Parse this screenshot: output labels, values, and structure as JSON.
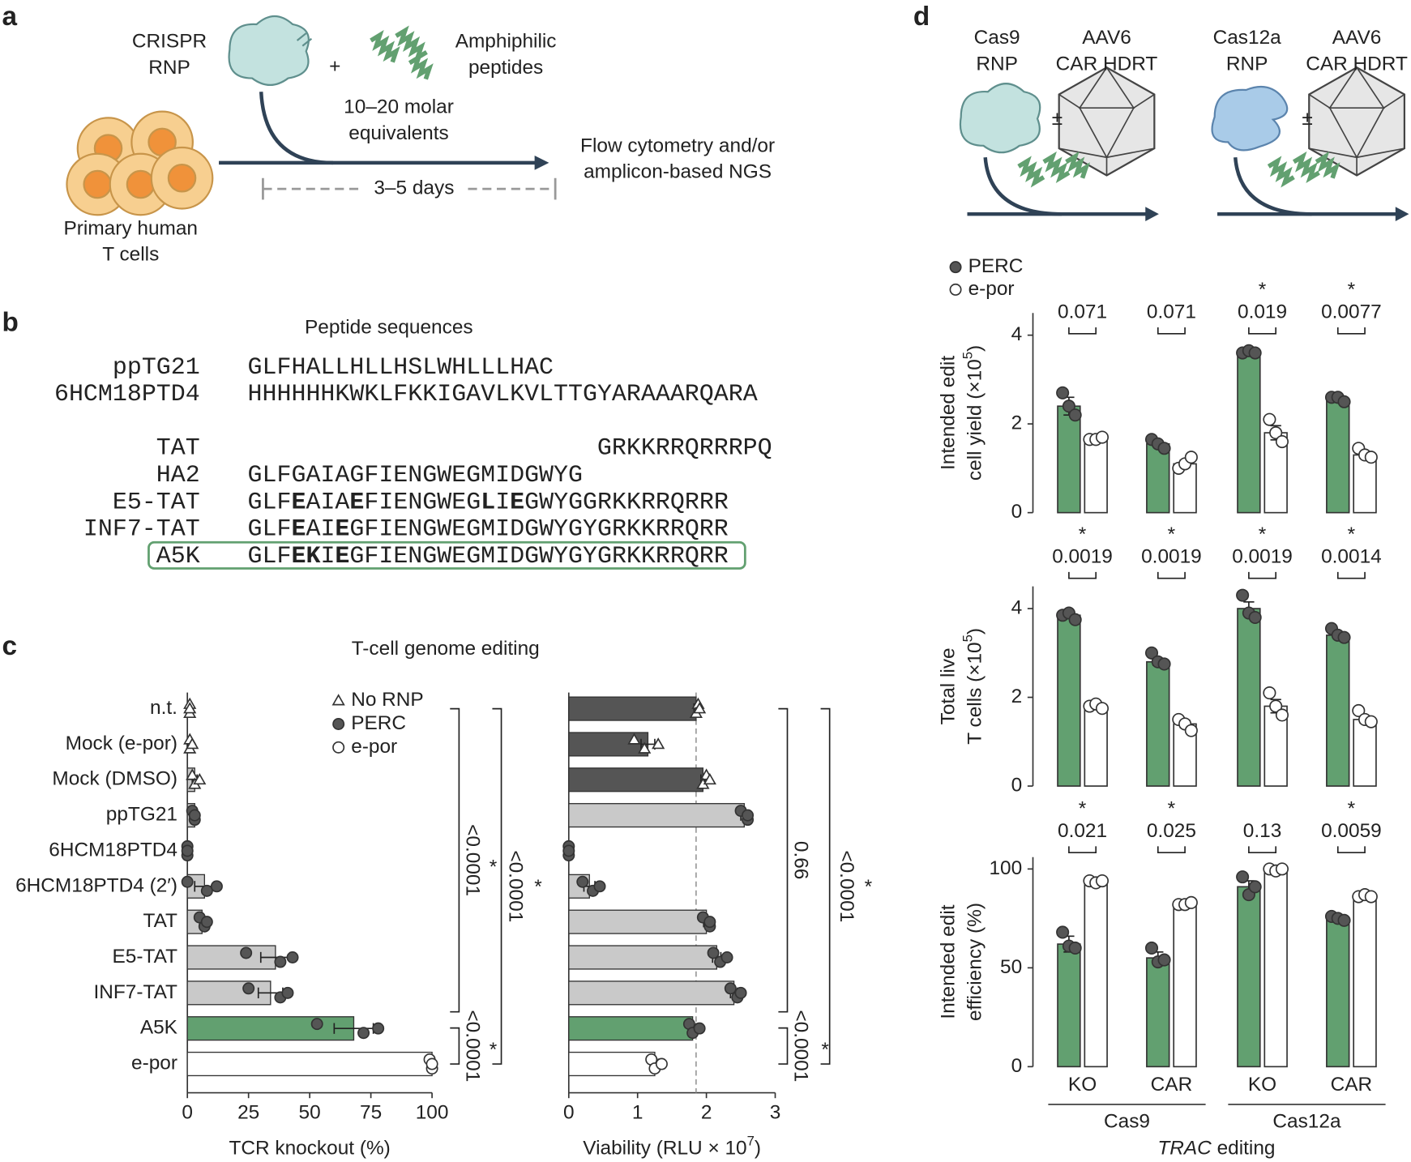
{
  "panel_labels": [
    "a",
    "b",
    "c",
    "d"
  ],
  "panel_a": {
    "rnp_label": [
      "CRISPR",
      "RNP"
    ],
    "plus": "+",
    "peptide_label": [
      "Amphiphilic",
      "peptides"
    ],
    "equivalents": [
      "10–20 molar",
      "equivalents"
    ],
    "duration": "3–5 days",
    "readout": [
      "Flow cytometry and/or",
      "amplicon-based NGS"
    ],
    "cells": [
      "Primary human",
      "T cells"
    ]
  },
  "panel_b": {
    "title": "Peptide sequences",
    "peptides": [
      {
        "name": "ppTG21",
        "segments": [
          {
            "text": "GLFHALLHLLHSLWHLLLHAC"
          }
        ]
      },
      {
        "name": "6HCM18PTD4",
        "segments": [
          {
            "text": "HHHHHHKWKLFKKIGAVLKVLTTGYARAAARQARA"
          }
        ]
      },
      {
        "name": "TAT",
        "segments": [
          {
            "text": "GRKKRRQRRRPQ"
          }
        ]
      },
      {
        "name": "HA2",
        "segments": [
          {
            "text": "GLFGAIAGFIENGWEGMIDGWYG"
          }
        ]
      },
      {
        "name": "E5-TAT",
        "segments": [
          {
            "text": "GLF"
          },
          {
            "text": "E",
            "bold": true
          },
          {
            "text": "AIA"
          },
          {
            "text": "E",
            "bold": true
          },
          {
            "text": "FIENGWEG"
          },
          {
            "text": "L",
            "bold": true
          },
          {
            "text": "I"
          },
          {
            "text": "E",
            "bold": true
          },
          {
            "text": "GWYGGRKKRRQRRR"
          }
        ]
      },
      {
        "name": "INF7-TAT",
        "segments": [
          {
            "text": "GLF"
          },
          {
            "text": "E",
            "bold": true
          },
          {
            "text": "AI"
          },
          {
            "text": "E",
            "bold": true
          },
          {
            "text": "GFIENGWEGMIDGWYGYGRKKRRQRR"
          }
        ]
      },
      {
        "name": "A5K",
        "segments": [
          {
            "text": "GLF"
          },
          {
            "text": "EK",
            "bold": true
          },
          {
            "text": "I"
          },
          {
            "text": "E",
            "bold": true
          },
          {
            "text": "GFIENGWEGMIDGWYGYGRKKRRQRR"
          }
        ]
      }
    ]
  },
  "panel_c": {
    "title": "T-cell genome editing",
    "legend": [
      {
        "name": "No RNP",
        "marker": "triangle"
      },
      {
        "name": "PERC",
        "marker": "filled"
      },
      {
        "name": "e-por",
        "marker": "open"
      }
    ],
    "categories": [
      "n.t.",
      "Mock (e-por)",
      "Mock (DMSO)",
      "ppTG21",
      "6HCM18PTD4",
      "6HCM18PTD4 (2′)",
      "TAT",
      "E5-TAT",
      "INF7-TAT",
      "A5K",
      "e-por"
    ],
    "markers": [
      "triangle",
      "triangle",
      "triangle",
      "filled",
      "filled",
      "filled",
      "filled",
      "filled",
      "filled",
      "filled",
      "open"
    ],
    "knockout": {
      "type": "bar",
      "xlabel": [
        {
          "text": "TCR knockout (%)"
        }
      ],
      "xlim": [
        0,
        100
      ],
      "xticks": [
        0,
        25,
        50,
        75,
        100
      ],
      "values": [
        0,
        0,
        3,
        3,
        0,
        7,
        6,
        36,
        34,
        68,
        100
      ],
      "errors": [
        0,
        0,
        1,
        0.5,
        0,
        4,
        1,
        6,
        5,
        8,
        0.5
      ],
      "points": [
        [
          1,
          1,
          1
        ],
        [
          1,
          1,
          2
        ],
        [
          2,
          3,
          5
        ],
        [
          2,
          3,
          3
        ],
        [
          0,
          0,
          0
        ],
        [
          0,
          8,
          12
        ],
        [
          5,
          7,
          8
        ],
        [
          24,
          38,
          43
        ],
        [
          25,
          38,
          41
        ],
        [
          53,
          72,
          78
        ],
        [
          99,
          100,
          100
        ]
      ],
      "colors": [
        "#c9c9c9",
        "#c9c9c9",
        "#c9c9c9",
        "#c9c9c9",
        "#c9c9c9",
        "#c9c9c9",
        "#c9c9c9",
        "#c9c9c9",
        "#c9c9c9",
        "#62a070",
        "#ffffff"
      ],
      "stats": [
        {
          "label": "<0.0001",
          "star": "*"
        },
        {
          "label": "<0.0001",
          "star": "*"
        },
        {
          "label": "<0.0001",
          "star": "*"
        }
      ]
    },
    "viability": {
      "type": "bar",
      "xlabel": [
        {
          "text": "Viability (RLU × 10"
        },
        {
          "text": "7",
          "sup": true
        },
        {
          "text": ")"
        }
      ],
      "xlim": [
        0,
        3
      ],
      "xticks": [
        0,
        1,
        2,
        3
      ],
      "reference_line": 1.85,
      "values": [
        1.85,
        1.15,
        1.95,
        2.55,
        0,
        0.3,
        2.0,
        2.15,
        2.4,
        1.8,
        1.25
      ],
      "errors": [
        0.03,
        0.1,
        0.03,
        0.05,
        0,
        0.08,
        0.04,
        0.06,
        0.05,
        0.05,
        0.05
      ],
      "points": [
        [
          1.88,
          1.85,
          1.9
        ],
        [
          0.95,
          1.1,
          1.3
        ],
        [
          2.0,
          1.95,
          2.05
        ],
        [
          2.5,
          2.6,
          2.6
        ],
        [
          0,
          0,
          0
        ],
        [
          0.2,
          0.35,
          0.45
        ],
        [
          1.95,
          2.05,
          2.05
        ],
        [
          2.1,
          2.2,
          2.3
        ],
        [
          2.35,
          2.45,
          2.5
        ],
        [
          1.75,
          1.8,
          1.9
        ],
        [
          1.2,
          1.25,
          1.35
        ]
      ],
      "colors": [
        "#555555",
        "#555555",
        "#555555",
        "#c9c9c9",
        "#c9c9c9",
        "#c9c9c9",
        "#c9c9c9",
        "#c9c9c9",
        "#c9c9c9",
        "#62a070",
        "#ffffff"
      ],
      "stats": [
        {
          "label": "0.66"
        },
        {
          "label": "<0.0001",
          "star": "*"
        },
        {
          "label": "<0.0001",
          "star": "*"
        }
      ]
    }
  },
  "panel_d": {
    "schemes": [
      {
        "rnp": [
          "Cas9",
          "RNP"
        ],
        "donor": [
          "AAV6",
          "CAR HDRT"
        ],
        "pm": "±"
      },
      {
        "rnp": [
          "Cas12a",
          "RNP"
        ],
        "donor": [
          "AAV6",
          "CAR HDRT"
        ],
        "pm": "±"
      }
    ],
    "legend": [
      {
        "name": "PERC",
        "marker": "filled",
        "color": "#62a070"
      },
      {
        "name": "e-por",
        "marker": "open",
        "color": "#ffffff"
      }
    ],
    "categories": [
      "KO",
      "CAR",
      "KO",
      "CAR"
    ],
    "groups": [
      "Cas9",
      "Cas12a"
    ],
    "xlabel": [
      {
        "text": "TRAC",
        "italic": true
      },
      {
        "text": " editing"
      }
    ],
    "star": "*",
    "charts": [
      {
        "type": "bar",
        "ylabel": [
          [
            {
              "text": "Intended edit"
            }
          ],
          [
            {
              "text": "cell yield (×10"
            },
            {
              "text": "5",
              "sup": true
            },
            {
              "text": ")"
            }
          ]
        ],
        "ylim": [
          0,
          4.5
        ],
        "yticks": [
          0,
          2,
          4
        ],
        "series": [
          {
            "values": [
              2.4,
              1.55,
              3.6,
              2.55
            ],
            "errors": [
              0.2,
              0.06,
              0.03,
              0.04
            ],
            "points": [
              [
                2.7,
                2.4,
                2.2
              ],
              [
                1.65,
                1.55,
                1.45
              ],
              [
                3.6,
                3.65,
                3.6
              ],
              [
                2.6,
                2.6,
                2.5
              ]
            ]
          },
          {
            "values": [
              1.65,
              1.1,
              1.8,
              1.3
            ],
            "errors": [
              0.03,
              0.08,
              0.16,
              0.07
            ],
            "points": [
              [
                1.65,
                1.65,
                1.7
              ],
              [
                1.0,
                1.1,
                1.25
              ],
              [
                2.1,
                1.8,
                1.6
              ],
              [
                1.45,
                1.3,
                1.25
              ]
            ]
          }
        ],
        "pvalues": [
          "0.071",
          "0.071",
          "0.019",
          "0.0077"
        ],
        "significant": [
          false,
          false,
          true,
          true
        ]
      },
      {
        "type": "bar",
        "ylabel": [
          [
            {
              "text": "Total live"
            }
          ],
          [
            {
              "text": "T cells (×10"
            },
            {
              "text": "5",
              "sup": true
            },
            {
              "text": ")"
            }
          ]
        ],
        "ylim": [
          0,
          4.5
        ],
        "yticks": [
          0,
          2,
          4
        ],
        "series": [
          {
            "values": [
              3.85,
              2.8,
              4.0,
              3.4
            ],
            "errors": [
              0.05,
              0.08,
              0.15,
              0.06
            ],
            "points": [
              [
                3.85,
                3.9,
                3.75
              ],
              [
                3.0,
                2.8,
                2.75
              ],
              [
                4.3,
                3.9,
                3.8
              ],
              [
                3.55,
                3.4,
                3.35
              ]
            ]
          },
          {
            "values": [
              1.8,
              1.4,
              1.8,
              1.5
            ],
            "errors": [
              0.03,
              0.08,
              0.15,
              0.08
            ],
            "points": [
              [
                1.8,
                1.85,
                1.75
              ],
              [
                1.5,
                1.4,
                1.25
              ],
              [
                2.1,
                1.8,
                1.6
              ],
              [
                1.7,
                1.5,
                1.45
              ]
            ]
          }
        ],
        "pvalues": [
          "0.0019",
          "0.0019",
          "0.0019",
          "0.0014"
        ],
        "significant": [
          true,
          true,
          true,
          true
        ]
      },
      {
        "type": "bar",
        "ylabel": [
          [
            {
              "text": "Intended edit"
            }
          ],
          [
            {
              "text": "efficiency (%)"
            }
          ]
        ],
        "ylim": [
          0,
          106
        ],
        "yticks": [
          0,
          50,
          100
        ],
        "series": [
          {
            "values": [
              62,
              55,
              91,
              75
            ],
            "errors": [
              4,
              3,
              3,
              1
            ],
            "points": [
              [
                68,
                61,
                60
              ],
              [
                60,
                53,
                54
              ],
              [
                96,
                87,
                91
              ],
              [
                76,
                75,
                74
              ]
            ]
          },
          {
            "values": [
              93,
              82,
              99,
              86
            ],
            "errors": [
              1,
              0.5,
              0.3,
              1
            ],
            "points": [
              [
                94,
                93,
                94
              ],
              [
                82,
                82,
                83
              ],
              [
                100,
                99,
                100
              ],
              [
                86,
                87,
                86
              ]
            ]
          }
        ],
        "pvalues": [
          "0.021",
          "0.025",
          "0.13",
          "0.0059"
        ],
        "significant": [
          true,
          true,
          false,
          true
        ]
      }
    ]
  }
}
